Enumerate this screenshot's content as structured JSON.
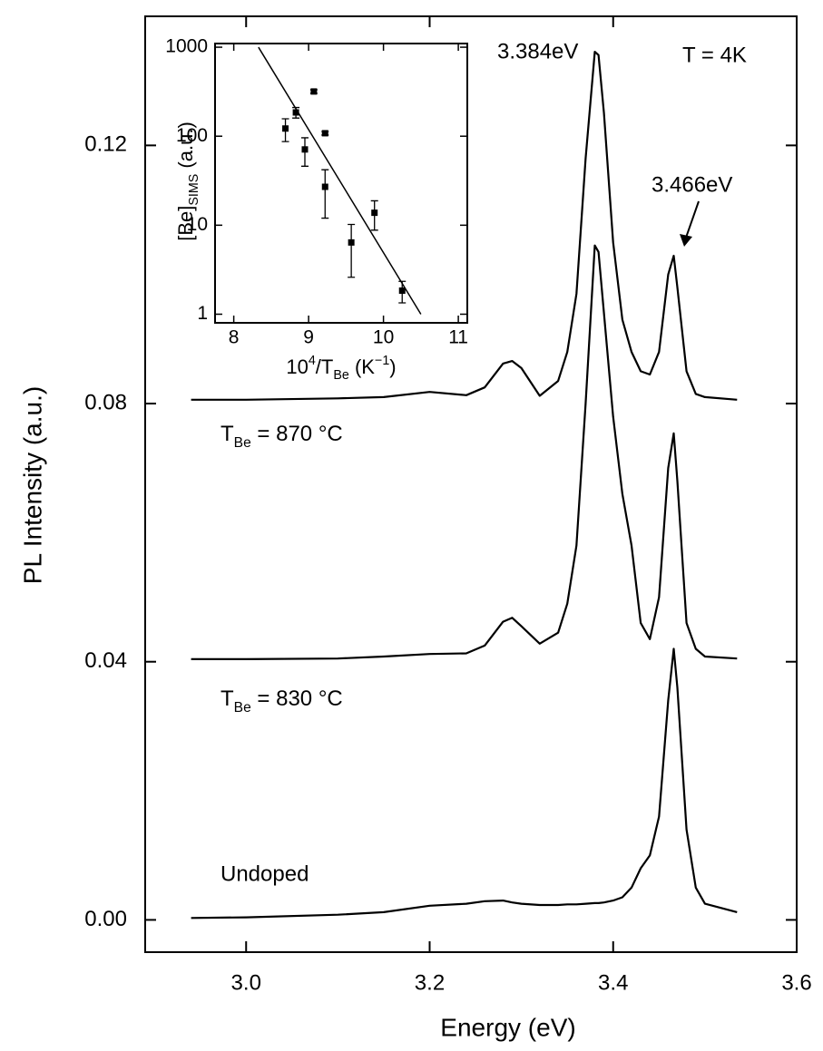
{
  "chart_data": [
    {
      "type": "line",
      "xlabel": "Energy (eV)",
      "ylabel": "PL Intensity (a.u.)",
      "xlim": [
        2.89,
        3.6
      ],
      "ylim": [
        -0.005,
        0.14
      ],
      "xticks": [
        {
          "value": 3.0,
          "label": "3.0"
        },
        3.2,
        3.4,
        3.6
      ],
      "yticks": [
        {
          "value": 0,
          "label": "0.00"
        },
        0.04,
        0.08,
        0.12
      ],
      "x": [
        2.94,
        3.0,
        3.1,
        3.15,
        3.2,
        3.24,
        3.26,
        3.28,
        3.29,
        3.3,
        3.32,
        3.34,
        3.35,
        3.36,
        3.37,
        3.38,
        3.384,
        3.39,
        3.4,
        3.41,
        3.42,
        3.43,
        3.44,
        3.45,
        3.46,
        3.466,
        3.47,
        3.48,
        3.49,
        3.5,
        3.535
      ],
      "series": [
        {
          "name": "Undoped",
          "color": "#000000",
          "values": [
            0.0003,
            0.0004,
            0.0008,
            0.0012,
            0.0022,
            0.0025,
            0.0029,
            0.003,
            0.0027,
            0.0025,
            0.0023,
            0.0023,
            0.0024,
            0.0024,
            0.0025,
            0.0026,
            0.0026,
            0.0027,
            0.003,
            0.0035,
            0.005,
            0.008,
            0.01,
            0.016,
            0.034,
            0.042,
            0.036,
            0.014,
            0.005,
            0.0025,
            0.0012
          ]
        },
        {
          "name": [
            {
              "text": "T"
            },
            {
              "text": "Be",
              "shift": "sub"
            },
            {
              "text": " = 830 °C"
            }
          ],
          "color": "#000000",
          "values": [
            0.0404,
            0.0404,
            0.0405,
            0.0408,
            0.0412,
            0.0413,
            0.0425,
            0.0462,
            0.0468,
            0.0455,
            0.0428,
            0.0445,
            0.049,
            0.058,
            0.08,
            0.1045,
            0.1035,
            0.094,
            0.078,
            0.066,
            0.058,
            0.046,
            0.0435,
            0.05,
            0.07,
            0.0754,
            0.068,
            0.046,
            0.042,
            0.0408,
            0.0405
          ]
        },
        {
          "name": [
            {
              "text": "T"
            },
            {
              "text": "Be",
              "shift": "sub"
            },
            {
              "text": " = 870 °C"
            }
          ],
          "color": "#000000",
          "values": [
            0.0806,
            0.0806,
            0.0808,
            0.081,
            0.0818,
            0.0813,
            0.0825,
            0.0862,
            0.0866,
            0.0855,
            0.0812,
            0.0835,
            0.088,
            0.097,
            0.118,
            0.1345,
            0.134,
            0.125,
            0.105,
            0.093,
            0.088,
            0.085,
            0.0845,
            0.088,
            0.1,
            0.1029,
            0.098,
            0.085,
            0.0815,
            0.081,
            0.0806
          ]
        }
      ],
      "annotations": [
        "3.384eV",
        "3.466eV",
        "T = 4K"
      ]
    },
    {
      "type": "scatter",
      "xlabel": [
        {
          "text": "10"
        },
        {
          "text": "4",
          "shift": "super"
        },
        {
          "text": "/T"
        },
        {
          "text": "Be",
          "shift": "sub"
        },
        {
          "text": " (K"
        },
        {
          "text": "−1",
          "shift": "super"
        },
        {
          "text": ")"
        }
      ],
      "ylabel": [
        {
          "text": "[Be]"
        },
        {
          "text": "SIMS",
          "shift": "sub"
        },
        {
          "text": " (a.u.)"
        }
      ],
      "xlim": [
        7.75,
        11.12
      ],
      "ylim": [
        0.8,
        1100
      ],
      "log_y": true,
      "xticks": [
        8,
        9,
        10,
        11
      ],
      "yticks": [
        1,
        10,
        100,
        1000
      ],
      "color": "#000000",
      "x": [
        8.69,
        8.83,
        8.95,
        9.07,
        9.22,
        9.22,
        9.57,
        9.88,
        10.25
      ],
      "values": [
        122,
        185,
        71,
        318,
        108,
        27,
        6.4,
        13.8,
        1.84
      ],
      "errors": [
        35,
        25,
        25,
        15,
        5,
        15,
        3.8,
        5,
        0.5
      ],
      "fit": {
        "x": [
          8.33,
          10.5
        ],
        "values": [
          1000,
          1
        ]
      }
    }
  ]
}
